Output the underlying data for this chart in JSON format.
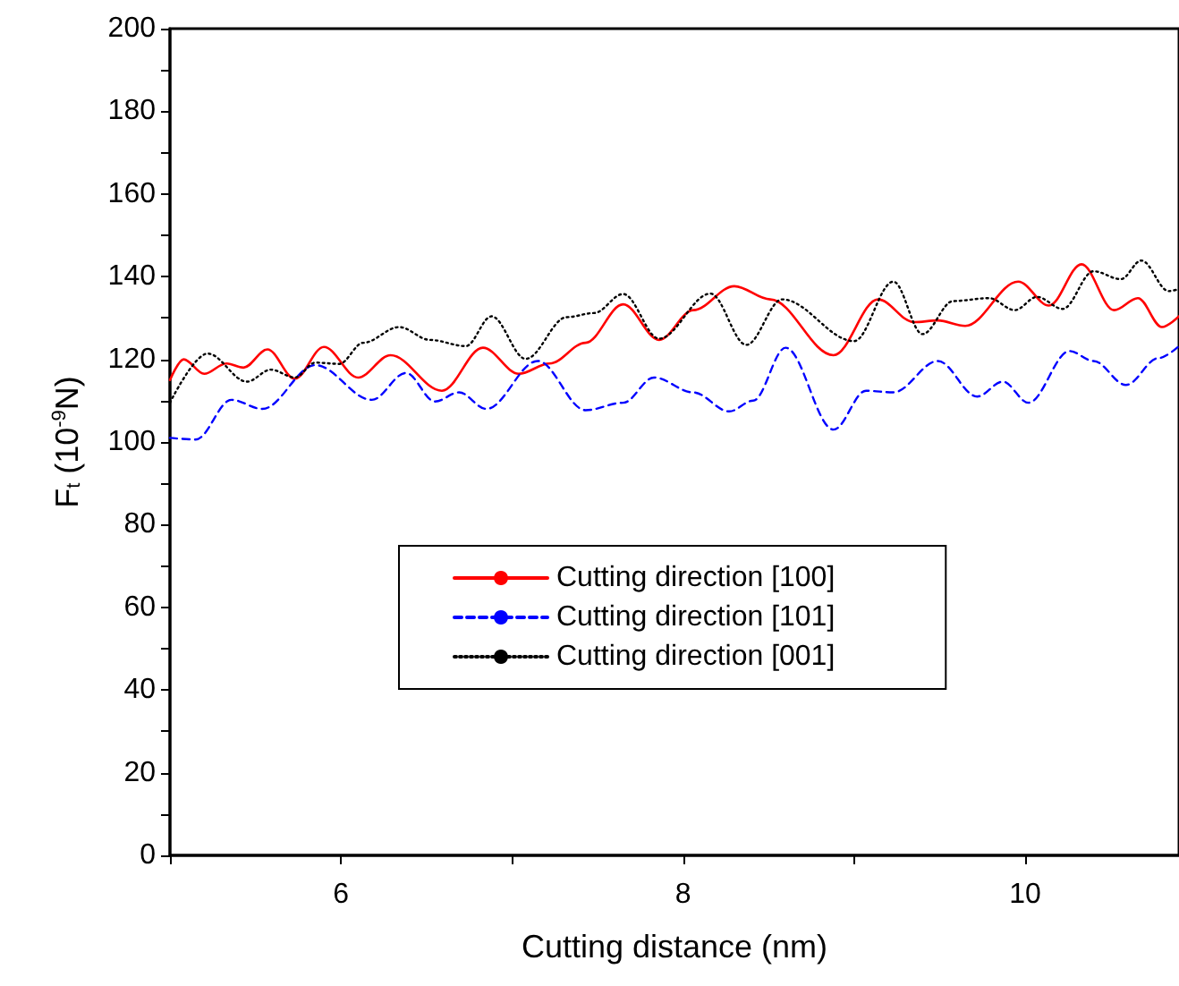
{
  "chart_data": {
    "type": "line",
    "xlabel": "Cutting distance (nm)",
    "ylabel": "F$_{t}$ (10$^{-9}$N)",
    "xlim": [
      5,
      10.9
    ],
    "xticks": [
      {
        "value": 5,
        "label": null
      },
      6,
      {
        "value": 7,
        "label": null
      },
      8,
      {
        "value": 9,
        "label": null
      },
      10
    ],
    "ylim": [
      0,
      200
    ],
    "yticks": [
      0,
      {
        "value": 10,
        "label": null
      },
      20,
      {
        "value": 30,
        "label": null
      },
      40,
      {
        "value": 50,
        "label": null
      },
      60,
      {
        "value": 70,
        "label": null
      },
      80,
      {
        "value": 90,
        "label": null
      },
      100,
      {
        "value": 110,
        "label": null
      },
      120,
      {
        "value": 130,
        "label": null
      },
      140,
      {
        "value": 150,
        "label": null
      },
      160,
      {
        "value": 170,
        "label": null
      },
      180,
      {
        "value": 190,
        "label": null
      },
      200
    ],
    "grid": false,
    "legend": "center",
    "marker": "none",
    "series": [
      {
        "name": "Cutting direction [100]",
        "color": "#ff0000",
        "line_style": "solid",
        "x": [
          5.0,
          5.08,
          5.2,
          5.33,
          5.43,
          5.57,
          5.73,
          5.9,
          6.1,
          6.29,
          6.59,
          6.83,
          7.04,
          7.22,
          7.43,
          7.65,
          7.86,
          8.06,
          8.3,
          8.51,
          8.88,
          9.14,
          9.35,
          9.49,
          9.65,
          9.96,
          10.14,
          10.33,
          10.52,
          10.66,
          10.8,
          10.9
        ],
        "values": [
          115,
          120,
          116.5,
          119,
          118,
          122.4,
          115.3,
          123,
          115.6,
          121,
          112.4,
          122.8,
          116.5,
          119,
          124,
          133.3,
          124.7,
          131.9,
          137.7,
          134.5,
          121,
          134.5,
          129,
          129.4,
          128.1,
          138.8,
          133,
          143,
          131.9,
          134.8,
          127.8,
          130.4
        ]
      },
      {
        "name": "Cutting direction [101]",
        "color": "#0000ff",
        "line_style": "dashed",
        "x": [
          5.0,
          5.15,
          5.36,
          5.54,
          5.85,
          6.18,
          6.38,
          6.55,
          6.69,
          6.85,
          7.15,
          7.43,
          7.65,
          7.83,
          8.06,
          8.27,
          8.41,
          8.6,
          8.88,
          9.07,
          9.23,
          9.49,
          9.72,
          9.87,
          10.02,
          10.26,
          10.4,
          10.59,
          10.78,
          10.9
        ],
        "values": [
          101,
          100.6,
          110.2,
          108,
          118.6,
          110.2,
          116.7,
          109.8,
          112,
          108,
          119.6,
          107.7,
          109.5,
          115.6,
          112,
          107.4,
          110,
          122.8,
          103,
          112.4,
          112,
          119.6,
          111,
          114.6,
          109.5,
          122,
          119.6,
          113.8,
          120.3,
          123.2
        ]
      },
      {
        "name": "Cutting direction [001]",
        "color": "#000000",
        "line_style": "dotted",
        "x": [
          5.0,
          5.22,
          5.45,
          5.59,
          5.73,
          5.85,
          5.99,
          6.13,
          6.34,
          6.52,
          6.73,
          6.88,
          7.08,
          7.32,
          7.48,
          7.65,
          7.86,
          8.16,
          8.37,
          8.58,
          9.0,
          9.23,
          9.4,
          9.58,
          9.79,
          9.94,
          10.07,
          10.22,
          10.4,
          10.56,
          10.68,
          10.84,
          10.9
        ],
        "values": [
          109.5,
          121.4,
          114.6,
          117.5,
          115.6,
          119.2,
          118.9,
          124,
          127.8,
          124.7,
          123.2,
          130.4,
          120.1,
          130.2,
          131.2,
          135.8,
          125,
          135.9,
          123.5,
          134.5,
          124.4,
          138.8,
          126.1,
          134.1,
          134.8,
          131.9,
          135.1,
          132.2,
          141.3,
          139.4,
          143.9,
          136.5,
          137
        ]
      }
    ]
  }
}
